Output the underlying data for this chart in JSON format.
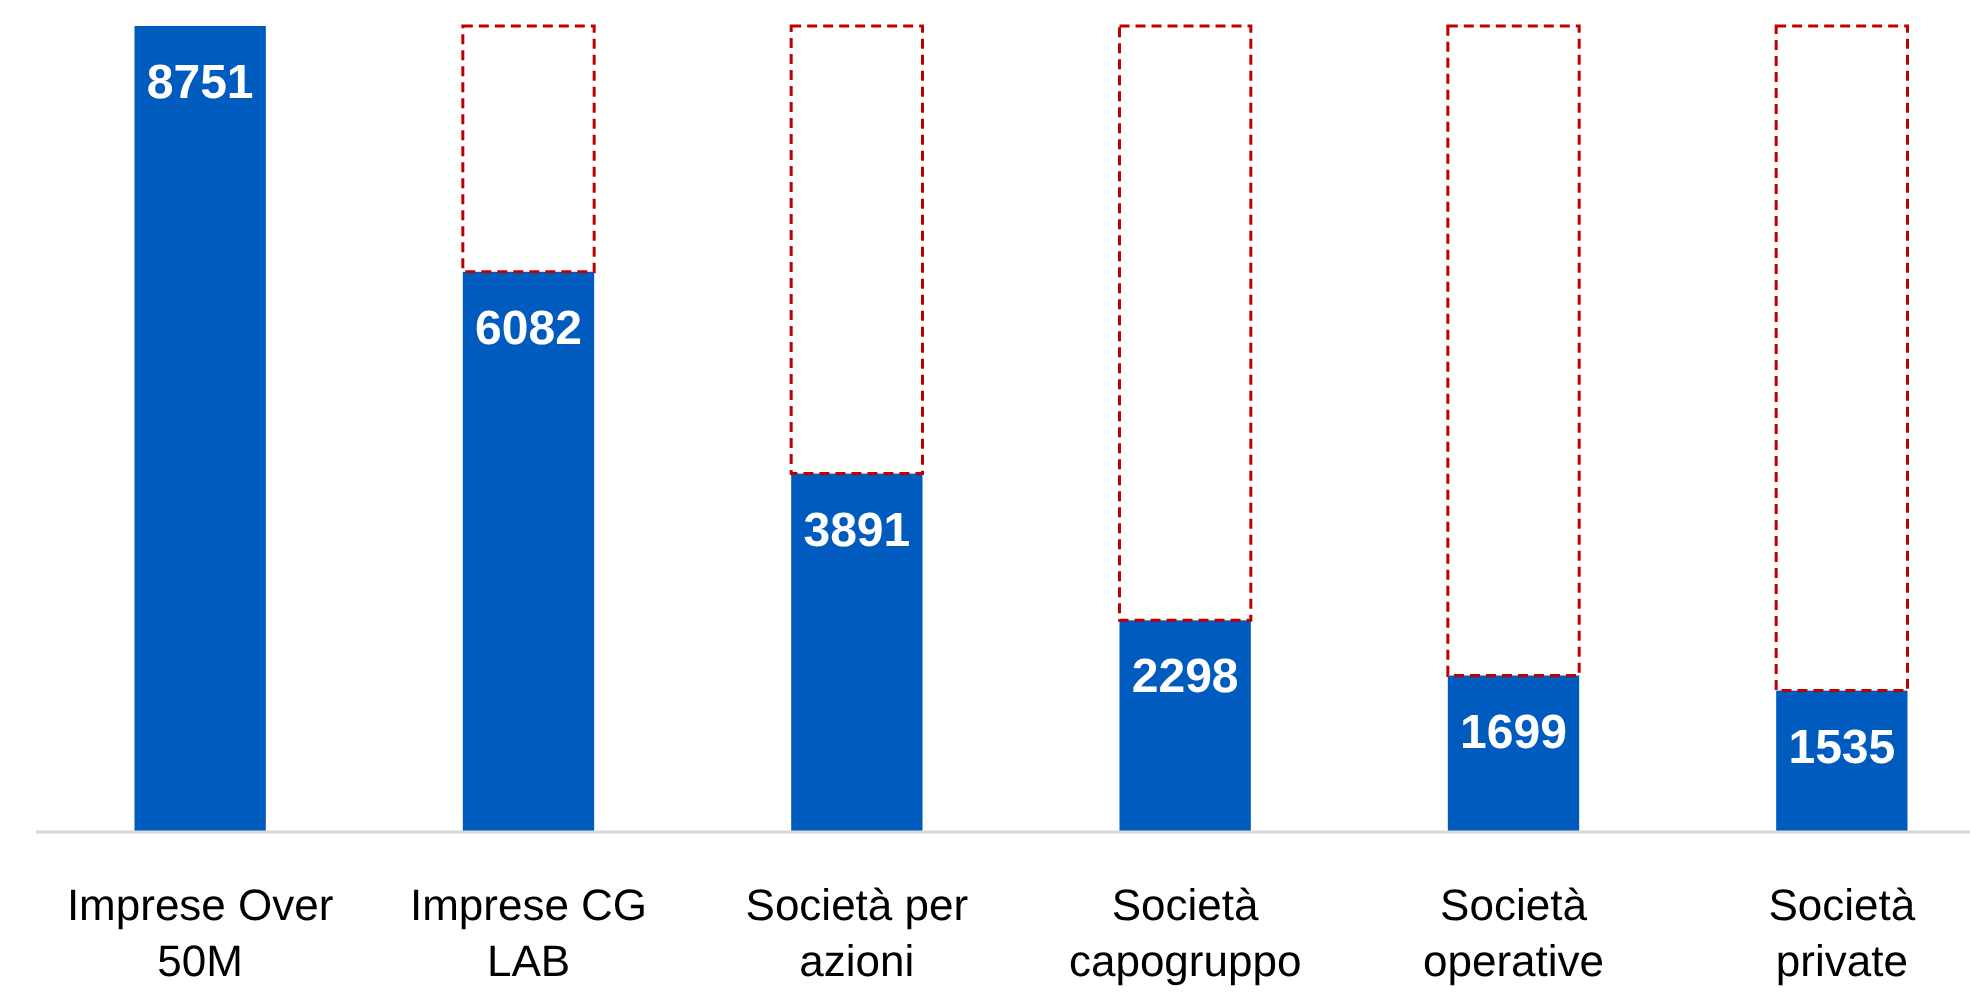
{
  "chart_data": {
    "type": "bar",
    "stacked": true,
    "categories": [
      "Imprese Over 50M",
      "Imprese CG LAB",
      "Società per azioni",
      "Società capogruppo",
      "Società operative",
      "Società private"
    ],
    "series": [
      {
        "color": "#005bbf",
        "values": [
          8751,
          6082,
          3891,
          2298,
          1699,
          1535
        ],
        "value_labels": [
          "8751",
          "6082",
          "3891",
          "2298",
          "1699",
          "1535"
        ]
      },
      {
        "color": "#c00000",
        "line_style": "dashed",
        "values": [
          0,
          2669,
          4860,
          6453,
          7052,
          7216
        ]
      }
    ]
  }
}
